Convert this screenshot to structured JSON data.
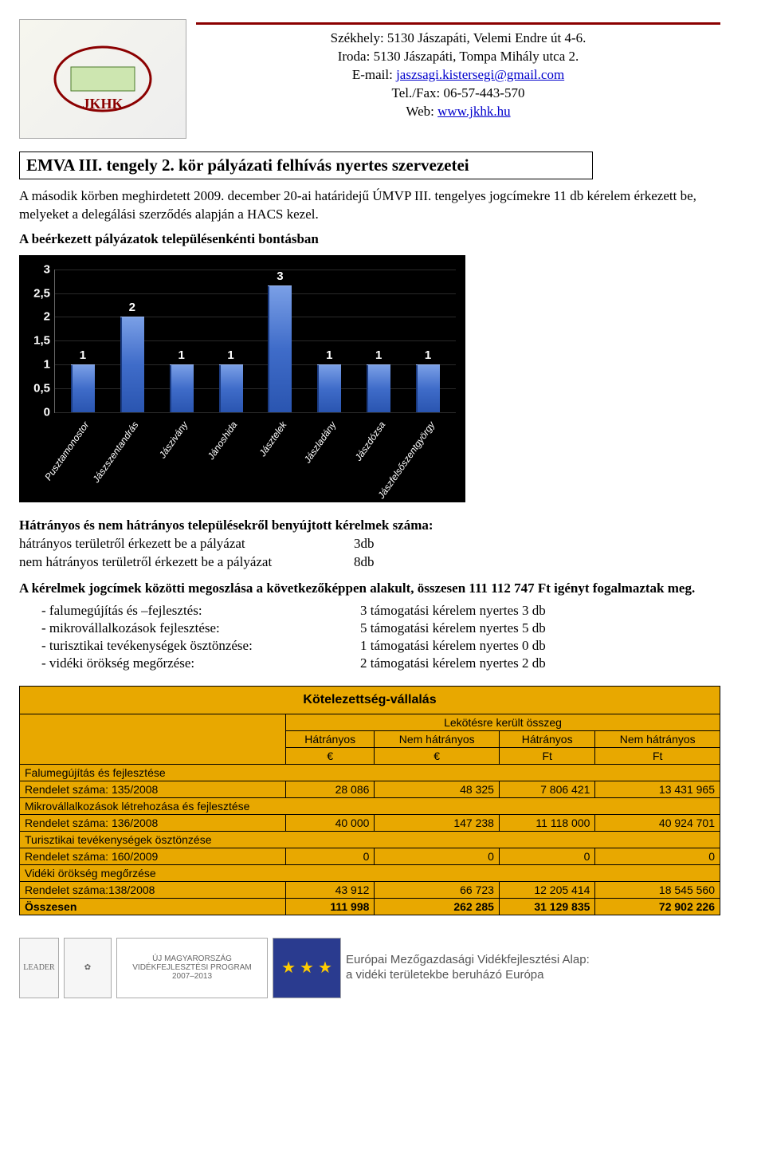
{
  "header": {
    "addr1": "Székhely: 5130 Jászapáti, Velemi Endre út 4-6.",
    "addr2": "Iroda: 5130 Jászapáti, Tompa Mihály utca 2.",
    "email_label": "E-mail: ",
    "email": "jaszsagi.kistersegi@gmail.com",
    "telfax": "Tel./Fax: 06-57-443-570",
    "web_label": "Web: ",
    "web": "www.jkhk.hu"
  },
  "title": "EMVA III. tengely 2. kör pályázati felhívás nyertes szervezetei",
  "intro": "A második körben meghirdetett 2009. december 20-ai határidejű ÚMVP III. tengelyes jogcímekre 11 db kérelem érkezett be, melyeket a delegálási szerződés alapján a HACS kezel.",
  "chart_heading": "A beérkezett pályázatok településenkénti bontásban",
  "chart": {
    "type": "bar",
    "bar_color": "#3f6cc9",
    "background_color": "#000000",
    "text_color": "#ffffff",
    "tick_font": "Arial",
    "ylim": [
      0,
      3
    ],
    "ytick_step": 0.5,
    "yticks": [
      "0",
      "0,5",
      "1",
      "1,5",
      "2",
      "2,5",
      "3"
    ],
    "categories": [
      "Pusztamonostor",
      "Jászszentandrás",
      "Jászivány",
      "Jánoshida",
      "Jásztelek",
      "Jászladány",
      "Jászdózsa",
      "Jászfelsőszentgyörgy"
    ],
    "values": [
      1,
      2,
      1,
      1,
      3,
      1,
      1,
      1
    ]
  },
  "disadv": {
    "heading": "Hátrányos és nem hátrányos településekről benyújtott kérelmek száma:",
    "row1_label": "hátrányos területről érkezett be a pályázat",
    "row1_val": "3db",
    "row2_label": "nem hátrányos területről érkezett be a pályázat",
    "row2_val": "8db"
  },
  "split": {
    "heading": "A kérelmek jogcímek közötti megoszlása a következőképpen alakult, összesen 111 112 747 Ft igényt fogalmaztak meg.",
    "items": [
      {
        "label": "- falumegújítás és –fejlesztés:",
        "val": "3 támogatási kérelem nyertes 3 db"
      },
      {
        "label": "- mikrovállalkozások fejlesztése:",
        "val": "5 támogatási kérelem nyertes 5 db"
      },
      {
        "label": "- turisztikai tevékenységek ösztönzése:",
        "val": "1 támogatási kérelem nyertes 0 db"
      },
      {
        "label": "- vidéki örökség megőrzése:",
        "val": "2 támogatási kérelem nyertes 2 db"
      }
    ]
  },
  "commit": {
    "title": "Kötelezettség-vállalás",
    "super_header": "Lekötésre került összeg",
    "col1": "Hátrányos",
    "col2": "Nem hátrányos",
    "col3": "Hátrányos",
    "col4": "Nem hátrányos",
    "unit_eur": "€",
    "unit_ft": "Ft",
    "rows": [
      {
        "label": "Falumegújítás és fejlesztése",
        "sub": "Rendelet száma: 135/2008",
        "v": [
          "28 086",
          "48 325",
          "7 806 421",
          "13 431 965"
        ]
      },
      {
        "label": "Mikrovállalkozások létrehozása és fejlesztése",
        "sub": "Rendelet száma: 136/2008",
        "v": [
          "40 000",
          "147 238",
          "11 118 000",
          "40 924 701"
        ]
      },
      {
        "label": "Turisztikai tevékenységek ösztönzése",
        "sub": "Rendelet száma: 160/2009",
        "v": [
          "0",
          "0",
          "0",
          "0"
        ]
      },
      {
        "label": "Vidéki örökség megőrzése",
        "sub": "Rendelet száma:138/2008",
        "v": [
          "43 912",
          "66 723",
          "12 205 414",
          "18 545 560"
        ]
      }
    ],
    "total_label": "Összesen",
    "total": [
      "111 998",
      "262 285",
      "31 129 835",
      "72 902 226"
    ]
  },
  "footer": {
    "prog": "ÚJ MAGYARORSZÁG VIDÉKFEJLESZTÉSI PROGRAM 2007–2013",
    "eu1": "Európai Mezőgazdasági Vidékfejlesztési Alap:",
    "eu2": "a vidéki területekbe beruházó Európa"
  }
}
